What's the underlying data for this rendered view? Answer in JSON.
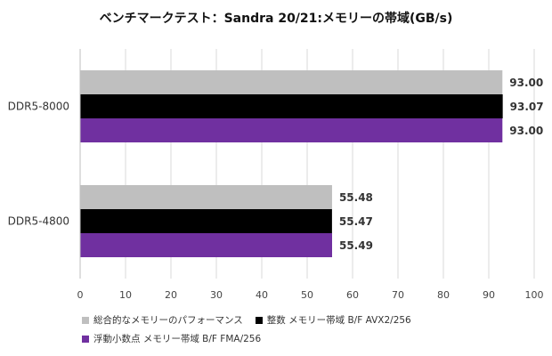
{
  "chart_data": {
    "type": "bar",
    "orientation": "horizontal",
    "title": "ベンチマークテスト：Sandra 20/21:メモリーの帯域(GB/s)",
    "categories": [
      "DDR5-8000",
      "DDR5-4800"
    ],
    "series": [
      {
        "name": "総合的なメモリーのパフォーマンス",
        "color": "#BFBFBF",
        "values": [
          93.0,
          55.48
        ],
        "labels": [
          "93.00",
          "55.48"
        ]
      },
      {
        "name": "整数 メモリー帯域 B/F AVX2/256",
        "color": "#000000",
        "values": [
          93.07,
          55.47
        ],
        "labels": [
          "93.07",
          "55.47"
        ]
      },
      {
        "name": "浮動小数点 メモリー帯域 B/F FMA/256",
        "color": "#7030A0",
        "values": [
          93.0,
          55.49
        ],
        "labels": [
          "93.00",
          "55.49"
        ]
      }
    ],
    "xlim": [
      0,
      100
    ],
    "xticks": [
      0,
      10,
      20,
      30,
      40,
      50,
      60,
      70,
      80,
      90,
      100
    ],
    "grid": true,
    "legend_position": "bottom"
  }
}
